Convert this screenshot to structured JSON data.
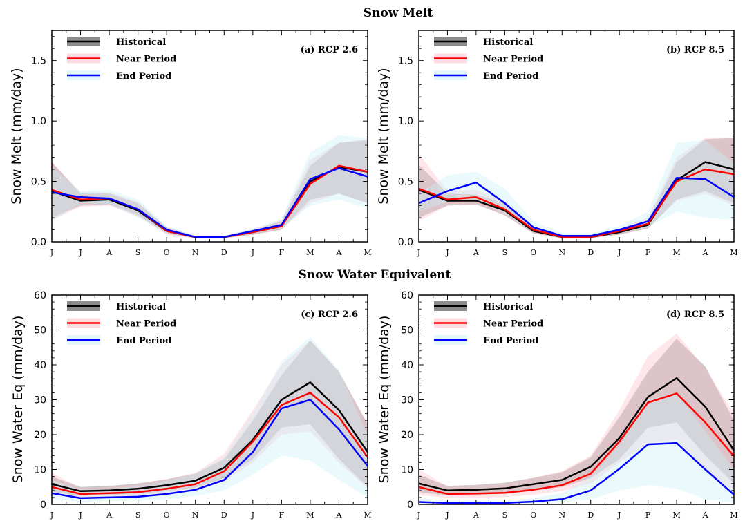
{
  "sections": [
    {
      "title": "Snow Melt",
      "ylabel": "Snow Melt (mm/day)"
    },
    {
      "title": "Snow Water Equivalent",
      "ylabel": "Snow Water Eq (mm/day)"
    }
  ],
  "legend": [
    {
      "label": "Historical",
      "line_color": "#000000",
      "band_color": "#808080"
    },
    {
      "label": "Near Period",
      "line_color": "#ff0000",
      "band_color": "#ffc0cb"
    },
    {
      "label": "End Period",
      "line_color": "#0000ff",
      "band_color": "#c8f0f8"
    }
  ],
  "chart_data": [
    {
      "type": "line",
      "panel_label": "(a) RCP 2.6",
      "categories": [
        "J",
        "J",
        "A",
        "S",
        "O",
        "N",
        "D",
        "J",
        "F",
        "M",
        "A",
        "M"
      ],
      "ylim": [
        0,
        1.75
      ],
      "yticks": [
        0.0,
        0.5,
        1.0,
        1.5
      ],
      "series": [
        {
          "name": "Historical",
          "color": "#000000",
          "band": "#808080",
          "values": [
            0.42,
            0.34,
            0.35,
            0.26,
            0.09,
            0.04,
            0.04,
            0.08,
            0.13,
            0.5,
            0.62,
            0.58
          ],
          "low": [
            0.2,
            0.3,
            0.31,
            0.22,
            0.07,
            0.03,
            0.03,
            0.06,
            0.1,
            0.35,
            0.4,
            0.32
          ],
          "high": [
            0.66,
            0.4,
            0.4,
            0.32,
            0.12,
            0.05,
            0.05,
            0.1,
            0.17,
            0.63,
            0.82,
            0.84
          ]
        },
        {
          "name": "Near Period",
          "color": "#ff0000",
          "band": "#ffc0cb",
          "values": [
            0.43,
            0.35,
            0.36,
            0.27,
            0.09,
            0.04,
            0.04,
            0.08,
            0.13,
            0.48,
            0.63,
            0.58
          ],
          "low": [
            0.18,
            0.29,
            0.3,
            0.21,
            0.06,
            0.03,
            0.03,
            0.06,
            0.1,
            0.32,
            0.4,
            0.32
          ],
          "high": [
            0.66,
            0.41,
            0.41,
            0.33,
            0.12,
            0.05,
            0.05,
            0.1,
            0.18,
            0.68,
            0.82,
            0.85
          ]
        },
        {
          "name": "End Period",
          "color": "#0000ff",
          "band": "#c8f0f8",
          "values": [
            0.41,
            0.37,
            0.36,
            0.27,
            0.1,
            0.04,
            0.04,
            0.09,
            0.14,
            0.52,
            0.61,
            0.54
          ],
          "low": [
            0.17,
            0.32,
            0.31,
            0.2,
            0.08,
            0.03,
            0.03,
            0.07,
            0.11,
            0.3,
            0.35,
            0.28
          ],
          "high": [
            0.62,
            0.42,
            0.43,
            0.35,
            0.13,
            0.05,
            0.05,
            0.11,
            0.19,
            0.74,
            0.88,
            0.86
          ]
        }
      ]
    },
    {
      "type": "line",
      "panel_label": "(b) RCP 8.5",
      "categories": [
        "J",
        "J",
        "A",
        "S",
        "O",
        "N",
        "D",
        "J",
        "F",
        "M",
        "A",
        "M"
      ],
      "ylim": [
        0,
        1.75
      ],
      "yticks": [
        0.0,
        0.5,
        1.0,
        1.5
      ],
      "series": [
        {
          "name": "Historical",
          "color": "#000000",
          "band": "#808080",
          "values": [
            0.43,
            0.34,
            0.34,
            0.26,
            0.09,
            0.04,
            0.04,
            0.08,
            0.14,
            0.51,
            0.66,
            0.6
          ],
          "low": [
            0.2,
            0.3,
            0.31,
            0.22,
            0.07,
            0.03,
            0.03,
            0.06,
            0.11,
            0.35,
            0.42,
            0.32
          ],
          "high": [
            0.64,
            0.4,
            0.39,
            0.32,
            0.12,
            0.05,
            0.05,
            0.1,
            0.18,
            0.66,
            0.85,
            0.86
          ]
        },
        {
          "name": "Near Period",
          "color": "#ff0000",
          "band": "#ffc0cb",
          "values": [
            0.44,
            0.35,
            0.37,
            0.27,
            0.1,
            0.04,
            0.04,
            0.09,
            0.15,
            0.5,
            0.6,
            0.56
          ],
          "low": [
            0.17,
            0.3,
            0.31,
            0.22,
            0.07,
            0.03,
            0.03,
            0.06,
            0.11,
            0.34,
            0.4,
            0.3
          ],
          "high": [
            0.73,
            0.42,
            0.43,
            0.34,
            0.13,
            0.05,
            0.05,
            0.11,
            0.2,
            0.7,
            0.86,
            0.86
          ]
        },
        {
          "name": "End Period",
          "color": "#0000ff",
          "band": "#c8f0f8",
          "values": [
            0.32,
            0.42,
            0.49,
            0.32,
            0.12,
            0.05,
            0.05,
            0.1,
            0.17,
            0.53,
            0.52,
            0.37
          ],
          "low": [
            0.25,
            0.33,
            0.36,
            0.23,
            0.08,
            0.03,
            0.03,
            0.07,
            0.12,
            0.25,
            0.2,
            0.18
          ],
          "high": [
            0.4,
            0.55,
            0.58,
            0.44,
            0.17,
            0.07,
            0.07,
            0.13,
            0.25,
            0.82,
            0.84,
            0.65
          ]
        }
      ]
    },
    {
      "type": "line",
      "panel_label": "(c) RCP 2.6",
      "categories": [
        "J",
        "J",
        "A",
        "S",
        "O",
        "N",
        "D",
        "J",
        "F",
        "M",
        "A",
        "M"
      ],
      "ylim": [
        0,
        60
      ],
      "yticks": [
        0,
        10,
        20,
        30,
        40,
        50,
        60
      ],
      "series": [
        {
          "name": "Historical",
          "color": "#000000",
          "band": "#808080",
          "values": [
            5.8,
            3.8,
            4.0,
            4.5,
            5.5,
            6.8,
            10.5,
            18.5,
            30.0,
            35.0,
            27.0,
            15.0
          ],
          "low": [
            3.5,
            2.5,
            2.7,
            3.0,
            3.8,
            4.8,
            7.5,
            13.0,
            22.0,
            23.0,
            13.0,
            5.0
          ],
          "high": [
            8.0,
            5.0,
            5.3,
            6.0,
            7.2,
            8.8,
            13.0,
            24.0,
            37.0,
            47.0,
            38.0,
            23.0
          ]
        },
        {
          "name": "Near Period",
          "color": "#ff0000",
          "band": "#ffc0cb",
          "values": [
            5.0,
            3.0,
            3.2,
            3.5,
            4.5,
            5.8,
            9.5,
            18.0,
            28.5,
            32.0,
            25.0,
            13.5
          ],
          "low": [
            3.0,
            2.0,
            2.2,
            2.5,
            3.2,
            4.0,
            6.5,
            12.0,
            20.0,
            21.0,
            12.0,
            4.5
          ],
          "high": [
            9.0,
            4.8,
            5.0,
            5.8,
            7.2,
            9.0,
            14.5,
            27.0,
            40.0,
            47.0,
            38.0,
            23.0
          ]
        },
        {
          "name": "End Period",
          "color": "#0000ff",
          "band": "#c8f0f8",
          "values": [
            3.2,
            1.8,
            2.0,
            2.2,
            3.0,
            4.2,
            7.0,
            15.0,
            27.5,
            30.0,
            21.5,
            11.0
          ],
          "low": [
            1.5,
            0.8,
            0.9,
            1.0,
            1.5,
            2.5,
            4.0,
            8.5,
            14.0,
            12.5,
            7.0,
            2.0
          ],
          "high": [
            7.0,
            4.2,
            4.5,
            5.2,
            6.8,
            8.8,
            13.5,
            26.0,
            41.0,
            48.0,
            38.5,
            20.0
          ]
        }
      ]
    },
    {
      "type": "line",
      "panel_label": "(d) RCP 8.5",
      "categories": [
        "J",
        "J",
        "A",
        "S",
        "O",
        "N",
        "D",
        "J",
        "F",
        "M",
        "A",
        "M"
      ],
      "ylim": [
        0,
        60
      ],
      "yticks": [
        0,
        10,
        20,
        30,
        40,
        50,
        60
      ],
      "series": [
        {
          "name": "Historical",
          "color": "#000000",
          "band": "#808080",
          "values": [
            6.0,
            4.0,
            4.2,
            4.6,
            5.8,
            7.0,
            10.8,
            19.0,
            30.8,
            36.2,
            28.0,
            15.5
          ],
          "low": [
            3.5,
            2.6,
            2.8,
            3.1,
            4.0,
            5.0,
            7.5,
            13.0,
            22.0,
            23.5,
            14.0,
            6.0
          ],
          "high": [
            8.5,
            5.3,
            5.6,
            6.2,
            7.6,
            9.2,
            13.5,
            25.0,
            38.0,
            47.5,
            39.5,
            24.0
          ]
        },
        {
          "name": "Near Period",
          "color": "#ff0000",
          "band": "#ffc0cb",
          "values": [
            5.0,
            3.0,
            3.1,
            3.3,
            4.2,
            5.5,
            8.8,
            18.0,
            29.2,
            31.8,
            23.5,
            13.8
          ],
          "low": [
            2.8,
            1.8,
            1.9,
            2.1,
            2.8,
            3.8,
            6.0,
            12.0,
            17.5,
            18.5,
            10.0,
            3.5
          ],
          "high": [
            10.0,
            5.2,
            5.5,
            6.0,
            7.6,
            9.5,
            14.0,
            27.0,
            42.5,
            49.0,
            39.0,
            26.0
          ]
        },
        {
          "name": "End Period",
          "color": "#0000ff",
          "band": "#c8f0f8",
          "values": [
            0.7,
            0.4,
            0.4,
            0.4,
            0.8,
            1.5,
            4.0,
            10.2,
            17.2,
            17.6,
            10.0,
            2.8
          ],
          "low": [
            0.2,
            0.1,
            0.1,
            0.1,
            0.3,
            0.6,
            1.5,
            4.0,
            5.5,
            4.5,
            1.5,
            0.5
          ],
          "high": [
            1.8,
            1.0,
            1.0,
            1.0,
            1.8,
            3.2,
            8.0,
            17.0,
            30.0,
            32.0,
            21.0,
            10.0
          ]
        }
      ]
    }
  ]
}
